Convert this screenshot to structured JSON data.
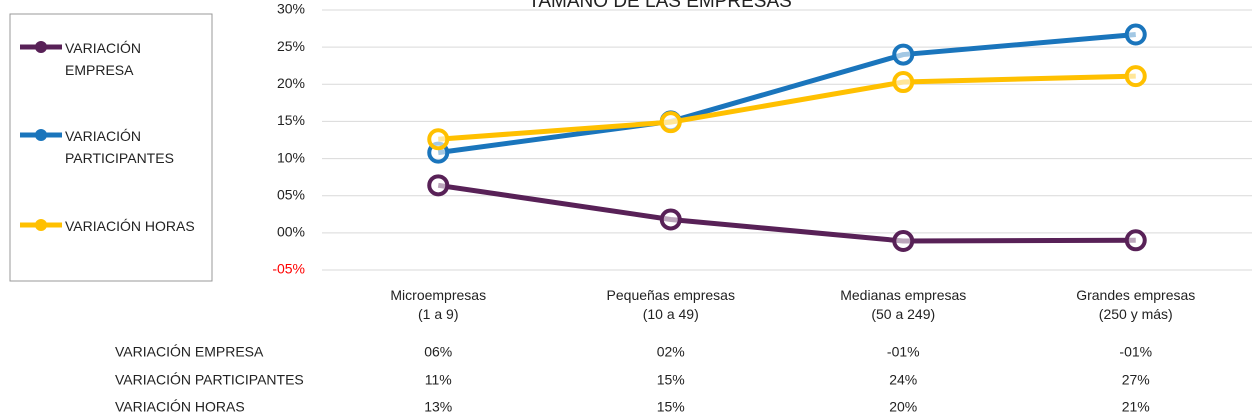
{
  "chart_data": {
    "type": "line",
    "title": "TAMAÑO DE LAS EMPRESAS",
    "categories": [
      "Microempresas\n(1 a 9)",
      "Pequeñas empresas\n(10 a 49)",
      "Medianas empresas\n(50 a 249)",
      "Grandes empresas\n(250 y más)"
    ],
    "series": [
      {
        "name": "VARIACIÓN EMPRESA",
        "color": "#582157",
        "values": [
          6.4,
          1.8,
          -1.1,
          -1.0
        ],
        "value_labels": [
          "06%",
          "02%",
          "-01%",
          "-01%"
        ]
      },
      {
        "name": "VARIACIÓN PARTICIPANTES",
        "color": "#1a75bc",
        "values": [
          10.8,
          15.0,
          24.0,
          26.7
        ],
        "value_labels": [
          "11%",
          "15%",
          "24%",
          "27%"
        ]
      },
      {
        "name": "VARIACIÓN HORAS",
        "color": "#ffc000",
        "values": [
          12.6,
          14.9,
          20.3,
          21.1
        ],
        "value_labels": [
          "13%",
          "15%",
          "20%",
          "21%"
        ]
      }
    ],
    "ylim": [
      -5,
      30
    ],
    "yticks": [
      {
        "value": -5,
        "label": "-05%"
      },
      {
        "value": 0,
        "label": "00%"
      },
      {
        "value": 5,
        "label": "05%"
      },
      {
        "value": 10,
        "label": "10%"
      },
      {
        "value": 15,
        "label": "15%"
      },
      {
        "value": 20,
        "label": "20%"
      },
      {
        "value": 25,
        "label": "25%"
      },
      {
        "value": 30,
        "label": "30%"
      }
    ],
    "negative_tick_color": "#ff0000",
    "grid": true,
    "legend": "left"
  }
}
